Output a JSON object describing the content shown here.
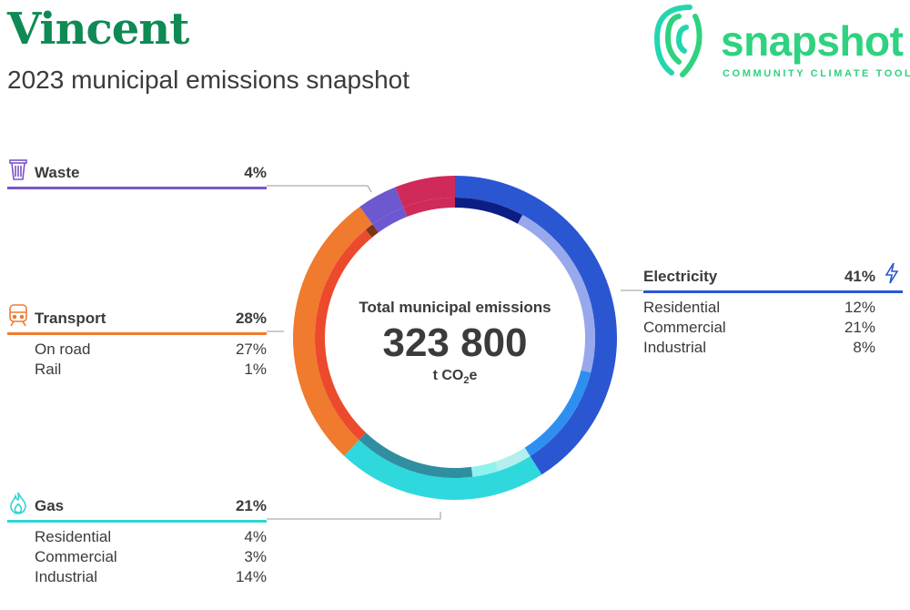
{
  "header": {
    "title": "Vincent",
    "subtitle": "2023 municipal emissions snapshot"
  },
  "logo": {
    "word": "snapshot",
    "tagline": "COMMUNITY CLIMATE TOOL"
  },
  "center": {
    "label": "Total municipal emissions",
    "value": "323 800",
    "unit_prefix": "t CO",
    "unit_sub": "2",
    "unit_suffix": "e"
  },
  "sections": {
    "waste": {
      "name": "Waste",
      "pct": "4%",
      "icon": "trash-icon",
      "color": "#7b55c8"
    },
    "transport": {
      "name": "Transport",
      "pct": "28%",
      "icon": "train-icon",
      "color": "#f07a2e",
      "items": [
        {
          "name": "On road",
          "pct": "27%"
        },
        {
          "name": "Rail",
          "pct": "1%"
        }
      ]
    },
    "gas": {
      "name": "Gas",
      "pct": "21%",
      "icon": "flame-icon",
      "color": "#2fd3d6",
      "items": [
        {
          "name": "Residential",
          "pct": "4%"
        },
        {
          "name": "Commercial",
          "pct": "3%"
        },
        {
          "name": "Industrial",
          "pct": "14%"
        }
      ]
    },
    "electricity": {
      "name": "Electricity",
      "pct": "41%",
      "icon": "lightning-icon",
      "color": "#2a56d2",
      "items": [
        {
          "name": "Residential",
          "pct": "12%"
        },
        {
          "name": "Commercial",
          "pct": "21%"
        },
        {
          "name": "Industrial",
          "pct": "8%"
        }
      ]
    }
  },
  "chart_data": {
    "type": "pie",
    "total": 323800,
    "unit": "t CO2e",
    "outer_ring": [
      {
        "name": "Electricity",
        "value": 41,
        "color": "#2a56d2"
      },
      {
        "name": "Gas",
        "value": 21,
        "color": "#2fd8dc"
      },
      {
        "name": "Transport",
        "value": 28,
        "color": "#f07a2e"
      },
      {
        "name": "Waste",
        "value": 4,
        "color": "#6e58d0"
      },
      {
        "name": "",
        "value": 6,
        "color": "#d02a5a"
      }
    ],
    "inner_ring": [
      {
        "name": "Electricity Industrial",
        "value": 8,
        "color": "#0c1e84"
      },
      {
        "name": "Electricity Commercial",
        "value": 21,
        "color": "#98a8ec"
      },
      {
        "name": "Electricity Residential",
        "value": 12,
        "color": "#2e8ff0"
      },
      {
        "name": "Gas Residential",
        "value": 4,
        "color": "#b4eeee"
      },
      {
        "name": "Gas Commercial",
        "value": 3,
        "color": "#8ff2ee"
      },
      {
        "name": "Gas Industrial",
        "value": 14,
        "color": "#2f8fa0"
      },
      {
        "name": "Transport On road",
        "value": 27,
        "color": "#ec4a2c"
      },
      {
        "name": "Transport Rail",
        "value": 1,
        "color": "#7a3416"
      },
      {
        "name": "Waste",
        "value": 4,
        "color": "#6e58d0"
      },
      {
        "name": "",
        "value": 6,
        "color": "#d02a5a"
      }
    ]
  }
}
